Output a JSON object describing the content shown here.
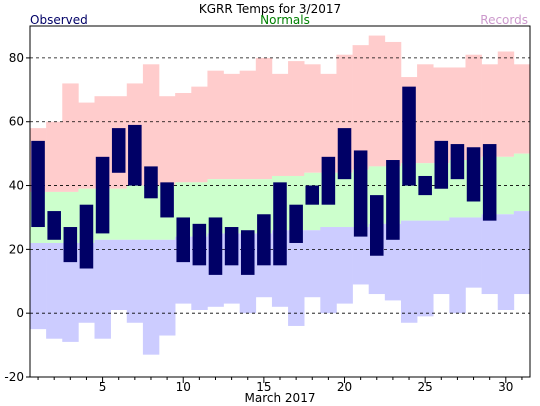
{
  "chart_data": {
    "type": "bar",
    "title": "KGRR Temps for 3/2017",
    "xlabel": "March 2017",
    "ylabel": "",
    "ylim": [
      -20,
      90
    ],
    "xlim": [
      0.5,
      31.5
    ],
    "yticks": [
      -20,
      0,
      20,
      40,
      60,
      80
    ],
    "xticks": [
      5,
      10,
      15,
      20,
      25,
      30
    ],
    "grid": "horizontal dashed",
    "legend": [
      {
        "name": "Observed",
        "color": "#000066",
        "placement": "top-left"
      },
      {
        "name": "Normals",
        "color": "#008000",
        "placement": "top-center"
      },
      {
        "name": "Records",
        "color": "#cc99cc",
        "placement": "top-right"
      }
    ],
    "days": [
      1,
      2,
      3,
      4,
      5,
      6,
      7,
      8,
      9,
      10,
      11,
      12,
      13,
      14,
      15,
      16,
      17,
      18,
      19,
      20,
      21,
      22,
      23,
      24,
      25,
      26,
      27,
      28,
      29,
      30,
      31
    ],
    "record_high": [
      58,
      60,
      72,
      66,
      68,
      68,
      72,
      78,
      68,
      69,
      71,
      76,
      75,
      76,
      80,
      75,
      79,
      78,
      75,
      81,
      84,
      87,
      85,
      74,
      78,
      77,
      77,
      81,
      78,
      82,
      78
    ],
    "normal_high": [
      38,
      38,
      38,
      39,
      39,
      39,
      40,
      40,
      40,
      41,
      41,
      42,
      42,
      42,
      42,
      43,
      43,
      44,
      44,
      44,
      45,
      46,
      46,
      47,
      47,
      47,
      48,
      48,
      49,
      49,
      50
    ],
    "normal_low": [
      22,
      22,
      22,
      22,
      23,
      23,
      23,
      23,
      23,
      24,
      24,
      25,
      25,
      25,
      25,
      26,
      26,
      26,
      27,
      27,
      27,
      28,
      28,
      29,
      29,
      29,
      30,
      30,
      31,
      31,
      32
    ],
    "record_low": [
      -5,
      -8,
      -9,
      -3,
      -8,
      1,
      -3,
      -13,
      -7,
      3,
      1,
      2,
      3,
      0,
      5,
      2,
      -4,
      5,
      0,
      3,
      9,
      6,
      4,
      -3,
      -1,
      6,
      0,
      8,
      6,
      1,
      6
    ],
    "series": [
      {
        "name": "Observed High",
        "values": [
          54,
          32,
          27,
          34,
          49,
          58,
          59,
          46,
          41,
          30,
          28,
          30,
          27,
          26,
          31,
          41,
          34,
          40,
          49,
          58,
          51,
          37,
          48,
          71,
          43,
          54,
          53,
          52,
          53,
          null,
          null
        ]
      },
      {
        "name": "Observed Low",
        "values": [
          27,
          23,
          16,
          14,
          25,
          44,
          40,
          36,
          30,
          16,
          15,
          12,
          15,
          12,
          15,
          15,
          22,
          34,
          34,
          42,
          24,
          18,
          23,
          40,
          37,
          39,
          42,
          35,
          29,
          null,
          null
        ]
      }
    ]
  }
}
